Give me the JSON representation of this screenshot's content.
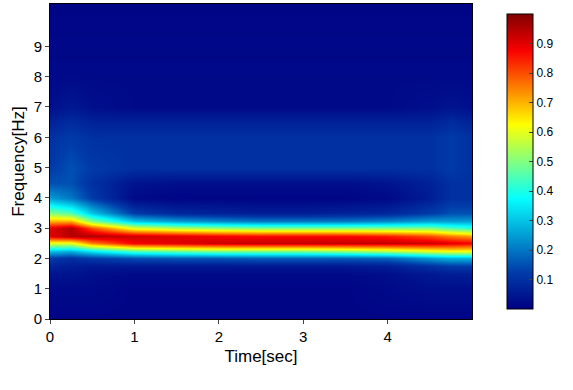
{
  "chart_data": {
    "type": "heatmap",
    "x_label": "Time[sec]",
    "y_label": "Frequency[Hz]",
    "xlim": [
      0,
      5
    ],
    "xticks": [
      0,
      1,
      2,
      3,
      4
    ],
    "ylim": [
      0,
      10.4
    ],
    "yticks": [
      0,
      1,
      2,
      3,
      4,
      5,
      6,
      7,
      8,
      9
    ],
    "x": [
      0,
      0.25,
      0.5,
      1,
      1.5,
      2,
      2.5,
      3,
      3.5,
      4,
      4.5,
      4.75,
      5
    ],
    "y": [
      0,
      1,
      1.5,
      1.75,
      2,
      2.25,
      2.5,
      2.75,
      3,
      3.25,
      3.5,
      4,
      4.5,
      5,
      6,
      6.5,
      7,
      8,
      10.4
    ],
    "cells": [
      [
        0.01,
        0.01,
        0.01,
        0.01,
        0.01,
        0.01,
        0.01,
        0.01,
        0.01,
        0.01,
        0.01,
        0.01,
        0.01
      ],
      [
        0.02,
        0.02,
        0.02,
        0.01,
        0.01,
        0.01,
        0.01,
        0.01,
        0.01,
        0.02,
        0.03,
        0.03,
        0.03
      ],
      [
        0.04,
        0.04,
        0.03,
        0.02,
        0.02,
        0.02,
        0.02,
        0.02,
        0.02,
        0.03,
        0.05,
        0.06,
        0.06
      ],
      [
        0.07,
        0.06,
        0.05,
        0.05,
        0.05,
        0.05,
        0.05,
        0.05,
        0.05,
        0.06,
        0.1,
        0.12,
        0.12
      ],
      [
        0.12,
        0.1,
        0.12,
        0.15,
        0.16,
        0.16,
        0.17,
        0.17,
        0.17,
        0.18,
        0.25,
        0.28,
        0.28
      ],
      [
        0.3,
        0.28,
        0.35,
        0.45,
        0.48,
        0.5,
        0.5,
        0.5,
        0.52,
        0.55,
        0.6,
        0.62,
        0.62
      ],
      [
        0.6,
        0.6,
        0.75,
        0.88,
        0.9,
        0.92,
        0.93,
        0.93,
        0.93,
        0.93,
        0.92,
        0.9,
        0.88
      ],
      [
        0.9,
        0.95,
        0.95,
        0.92,
        0.9,
        0.88,
        0.87,
        0.87,
        0.87,
        0.85,
        0.8,
        0.75,
        0.72
      ],
      [
        0.9,
        0.95,
        0.8,
        0.6,
        0.55,
        0.52,
        0.5,
        0.5,
        0.5,
        0.5,
        0.5,
        0.45,
        0.42
      ],
      [
        0.7,
        0.7,
        0.5,
        0.3,
        0.25,
        0.22,
        0.2,
        0.2,
        0.2,
        0.22,
        0.25,
        0.25,
        0.25
      ],
      [
        0.5,
        0.45,
        0.3,
        0.12,
        0.08,
        0.07,
        0.06,
        0.06,
        0.07,
        0.08,
        0.12,
        0.15,
        0.15
      ],
      [
        0.25,
        0.2,
        0.12,
        0.02,
        0.01,
        0.01,
        0.01,
        0.01,
        0.01,
        0.02,
        0.06,
        0.1,
        0.1
      ],
      [
        0.15,
        0.15,
        0.1,
        0.04,
        0.03,
        0.03,
        0.03,
        0.03,
        0.03,
        0.04,
        0.07,
        0.1,
        0.1
      ],
      [
        0.12,
        0.15,
        0.12,
        0.1,
        0.1,
        0.1,
        0.1,
        0.1,
        0.1,
        0.1,
        0.1,
        0.12,
        0.1
      ],
      [
        0.1,
        0.12,
        0.1,
        0.1,
        0.1,
        0.1,
        0.1,
        0.1,
        0.1,
        0.1,
        0.1,
        0.12,
        0.1
      ],
      [
        0.07,
        0.09,
        0.07,
        0.07,
        0.07,
        0.07,
        0.07,
        0.07,
        0.07,
        0.07,
        0.07,
        0.09,
        0.07
      ],
      [
        0.03,
        0.05,
        0.03,
        0.02,
        0.02,
        0.02,
        0.02,
        0.02,
        0.02,
        0.02,
        0.03,
        0.04,
        0.03
      ],
      [
        0.02,
        0.02,
        0.02,
        0.02,
        0.02,
        0.02,
        0.02,
        0.02,
        0.02,
        0.02,
        0.02,
        0.02,
        0.02
      ],
      [
        0.01,
        0.01,
        0.01,
        0.01,
        0.01,
        0.01,
        0.01,
        0.01,
        0.01,
        0.01,
        0.01,
        0.01,
        0.01
      ]
    ],
    "colorbar": {
      "range": [
        0,
        1
      ],
      "ticks": [
        0.1,
        0.2,
        0.3,
        0.4,
        0.5,
        0.6,
        0.7,
        0.8,
        0.9
      ]
    }
  }
}
